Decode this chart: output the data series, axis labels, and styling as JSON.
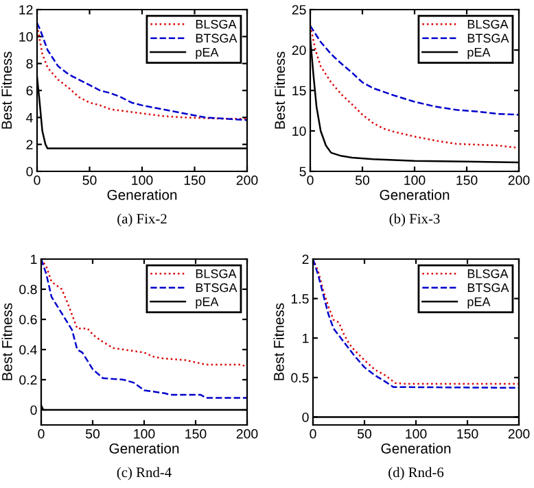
{
  "chart_data": [
    {
      "type": "line",
      "xlabel": "Generation",
      "ylabel": "Best Fitness",
      "annotations": [
        "(a) Fix-2"
      ],
      "xlim": [
        0,
        200
      ],
      "xticks": [
        0,
        50,
        100,
        150,
        200
      ],
      "ylim": [
        0,
        12
      ],
      "yticks": [
        0,
        2,
        4,
        6,
        8,
        10,
        12
      ],
      "legend": "top right",
      "grid": false,
      "series": [
        {
          "name": "BLSGA",
          "color": "#dd0000",
          "line_style": "dotted",
          "x": [
            0,
            2,
            5,
            10,
            20,
            30,
            40,
            50,
            60,
            70,
            80,
            90,
            100,
            120,
            140,
            160,
            180,
            200
          ],
          "values": [
            10.8,
            10,
            8.7,
            7.7,
            6.8,
            6.2,
            5.5,
            5.1,
            4.9,
            4.6,
            4.5,
            4.4,
            4.3,
            4.1,
            4.0,
            3.95,
            3.9,
            3.9
          ]
        },
        {
          "name": "BTSGA",
          "color": "#0000cc",
          "line_style": "dashed",
          "x": [
            0,
            3,
            10,
            20,
            30,
            40,
            50,
            60,
            70,
            80,
            90,
            100,
            120,
            140,
            160,
            180,
            200
          ],
          "values": [
            11,
            10.5,
            9,
            7.8,
            7.2,
            6.8,
            6.4,
            6.0,
            5.8,
            5.5,
            5.1,
            4.9,
            4.6,
            4.3,
            4.0,
            3.9,
            3.8
          ]
        },
        {
          "name": "pEA",
          "color": "#000000",
          "line_style": "solid",
          "x": [
            0,
            2,
            5,
            8,
            10,
            200
          ],
          "values": [
            7,
            5.5,
            3,
            2,
            1.7,
            1.7
          ]
        }
      ]
    },
    {
      "type": "line",
      "xlabel": "Generation",
      "ylabel": "Best Fitness",
      "annotations": [
        "(b) Fix-3"
      ],
      "xlim": [
        0,
        200
      ],
      "xticks": [
        0,
        50,
        100,
        150,
        200
      ],
      "ylim": [
        5,
        25
      ],
      "yticks": [
        5,
        10,
        15,
        20,
        25
      ],
      "legend": "top right",
      "grid": false,
      "series": [
        {
          "name": "BLSGA",
          "color": "#dd0000",
          "line_style": "dotted",
          "x": [
            0,
            5,
            10,
            20,
            30,
            40,
            50,
            60,
            70,
            80,
            90,
            100,
            120,
            140,
            160,
            180,
            200
          ],
          "values": [
            23,
            20,
            18,
            16,
            14.5,
            13.3,
            12,
            11,
            10.3,
            9.9,
            9.6,
            9.3,
            8.8,
            8.4,
            8.3,
            8.2,
            7.9
          ]
        },
        {
          "name": "BTSGA",
          "color": "#0000cc",
          "line_style": "dashed",
          "x": [
            0,
            10,
            20,
            30,
            40,
            50,
            60,
            80,
            100,
            120,
            140,
            160,
            180,
            200
          ],
          "values": [
            23,
            21,
            19.5,
            18.3,
            17.2,
            16,
            15.3,
            14.4,
            13.6,
            13,
            12.6,
            12.4,
            12.1,
            12
          ]
        },
        {
          "name": "pEA",
          "color": "#000000",
          "line_style": "solid",
          "x": [
            0,
            3,
            6,
            10,
            15,
            20,
            30,
            40,
            60,
            100,
            150,
            200
          ],
          "values": [
            21.5,
            17,
            13,
            10,
            8.2,
            7.3,
            6.9,
            6.7,
            6.5,
            6.3,
            6.2,
            6.1
          ]
        }
      ]
    },
    {
      "type": "line",
      "xlabel": "Generation",
      "ylabel": "Best Fitness",
      "annotations": [
        "(c) Rnd-4"
      ],
      "xlim": [
        0,
        200
      ],
      "xticks": [
        0,
        50,
        100,
        150,
        200
      ],
      "ylim": [
        -0.1,
        1
      ],
      "yticks": [
        0,
        0.2,
        0.4,
        0.6,
        0.8,
        1
      ],
      "legend": "top right",
      "grid": false,
      "series": [
        {
          "name": "BLSGA",
          "color": "#dd0000",
          "line_style": "dotted",
          "x": [
            0,
            5,
            10,
            20,
            25,
            30,
            35,
            45,
            50,
            60,
            70,
            80,
            100,
            110,
            120,
            140,
            160,
            195,
            200
          ],
          "values": [
            1,
            0.95,
            0.85,
            0.8,
            0.72,
            0.63,
            0.54,
            0.54,
            0.5,
            0.45,
            0.41,
            0.4,
            0.38,
            0.35,
            0.34,
            0.33,
            0.3,
            0.3,
            0.28
          ]
        },
        {
          "name": "BTSGA",
          "color": "#0000cc",
          "line_style": "dashed",
          "x": [
            0,
            5,
            10,
            20,
            30,
            35,
            40,
            50,
            60,
            80,
            90,
            100,
            120,
            125,
            155,
            160,
            200
          ],
          "values": [
            1,
            0.9,
            0.75,
            0.64,
            0.53,
            0.4,
            0.38,
            0.27,
            0.21,
            0.2,
            0.18,
            0.13,
            0.11,
            0.1,
            0.1,
            0.08,
            0.08
          ]
        },
        {
          "name": "pEA",
          "color": "#000000",
          "line_style": "solid",
          "x": [
            0,
            2,
            200
          ],
          "values": [
            0.03,
            0,
            0
          ]
        }
      ]
    },
    {
      "type": "line",
      "xlabel": "Generation",
      "ylabel": "Best Fitness",
      "annotations": [
        "(d) Rnd-6"
      ],
      "xlim": [
        0,
        200
      ],
      "xticks": [
        0,
        50,
        100,
        150,
        200
      ],
      "ylim": [
        -0.1,
        2
      ],
      "yticks": [
        0,
        0.5,
        1,
        1.5,
        2
      ],
      "legend": "top right",
      "grid": false,
      "series": [
        {
          "name": "BLSGA",
          "color": "#dd0000",
          "line_style": "dotted",
          "x": [
            0,
            5,
            10,
            15,
            20,
            25,
            30,
            35,
            40,
            50,
            60,
            70,
            80,
            90,
            200
          ],
          "values": [
            2,
            1.85,
            1.6,
            1.4,
            1.23,
            1.2,
            1.05,
            0.93,
            0.85,
            0.72,
            0.6,
            0.53,
            0.43,
            0.42,
            0.42
          ]
        },
        {
          "name": "BTSGA",
          "color": "#0000cc",
          "line_style": "dashed",
          "x": [
            0,
            5,
            10,
            15,
            20,
            30,
            40,
            50,
            60,
            70,
            78,
            200
          ],
          "values": [
            2,
            1.8,
            1.55,
            1.3,
            1.12,
            0.95,
            0.78,
            0.63,
            0.53,
            0.45,
            0.38,
            0.37
          ]
        },
        {
          "name": "pEA",
          "color": "#000000",
          "line_style": "solid",
          "x": [
            0,
            200
          ],
          "values": [
            0,
            0
          ]
        }
      ]
    }
  ]
}
